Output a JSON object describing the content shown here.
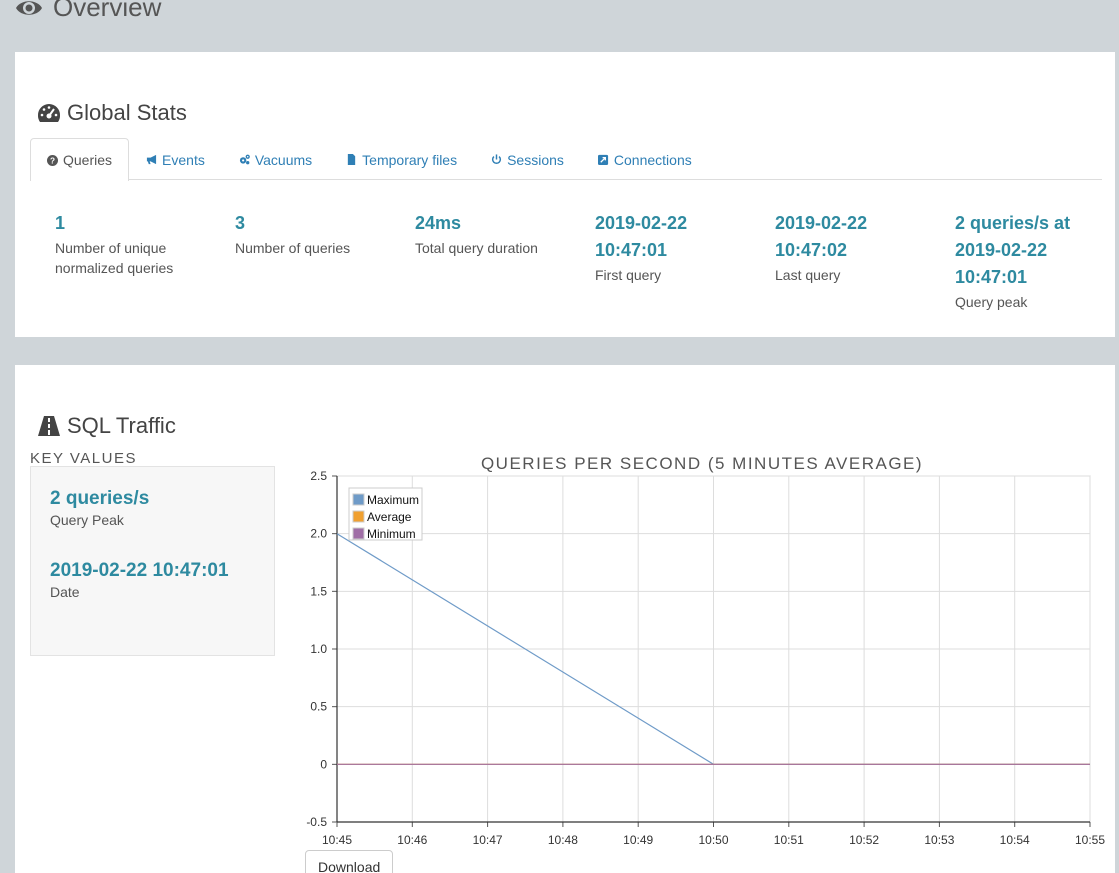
{
  "page": {
    "title": "Overview",
    "title_icon": "eye-icon"
  },
  "global_stats": {
    "heading": "Global Stats",
    "icon": "dashboard-icon",
    "tabs": [
      {
        "label": "Queries",
        "icon": "question-circle-icon",
        "active": true
      },
      {
        "label": "Events",
        "icon": "bullhorn-icon"
      },
      {
        "label": "Vacuums",
        "icon": "cogs-icon"
      },
      {
        "label": "Temporary files",
        "icon": "file-icon"
      },
      {
        "label": "Sessions",
        "icon": "power-icon"
      },
      {
        "label": "Connections",
        "icon": "external-link-icon"
      }
    ],
    "stats": [
      {
        "value_lines": [
          "1"
        ],
        "label_lines": [
          "Number of unique",
          "normalized queries"
        ]
      },
      {
        "value_lines": [
          "3"
        ],
        "label_lines": [
          "Number of queries"
        ]
      },
      {
        "value_lines": [
          "24ms"
        ],
        "label_lines": [
          "Total query duration"
        ]
      },
      {
        "value_lines": [
          "2019-02-22",
          "10:47:01"
        ],
        "label_lines": [
          "First query"
        ]
      },
      {
        "value_lines": [
          "2019-02-22",
          "10:47:02"
        ],
        "label_lines": [
          "Last query"
        ]
      },
      {
        "value_lines": [
          "2 queries/s at",
          "2019-02-22",
          "10:47:01"
        ],
        "label_lines": [
          "Query peak"
        ]
      }
    ]
  },
  "sql_traffic": {
    "heading": "SQL Traffic",
    "icon": "road-icon",
    "key_values": {
      "title": "KEY VALUES",
      "items": [
        {
          "value": "2 queries/s",
          "label": "Query Peak"
        },
        {
          "value": "2019-02-22 10:47:01",
          "label": "Date"
        }
      ]
    },
    "download_label": "Download"
  },
  "chart_data": {
    "type": "line",
    "title": "QUERIES PER SECOND (5 MINUTES AVERAGE)",
    "xlabel": "",
    "ylabel": "",
    "x": [
      "10:45",
      "10:46",
      "10:47",
      "10:48",
      "10:49",
      "10:50",
      "10:51",
      "10:52",
      "10:53",
      "10:54",
      "10:55"
    ],
    "ylim": [
      -0.5,
      2.5
    ],
    "yticks": [
      "2.5",
      "2.0",
      "1.5",
      "1.0",
      "0.5",
      "0",
      "-0.5"
    ],
    "grid": true,
    "legend_position": "top-left",
    "series": [
      {
        "name": "Maximum",
        "color": "#6f9bc8",
        "points": [
          [
            "10:45",
            2
          ],
          [
            "10:50",
            0
          ],
          [
            "10:55",
            0
          ]
        ]
      },
      {
        "name": "Average",
        "color": "#f0a030",
        "points": [
          [
            "10:45",
            0
          ],
          [
            "10:55",
            0
          ]
        ]
      },
      {
        "name": "Minimum",
        "color": "#a06fa6",
        "points": [
          [
            "10:45",
            0
          ],
          [
            "10:55",
            0
          ]
        ]
      }
    ]
  }
}
